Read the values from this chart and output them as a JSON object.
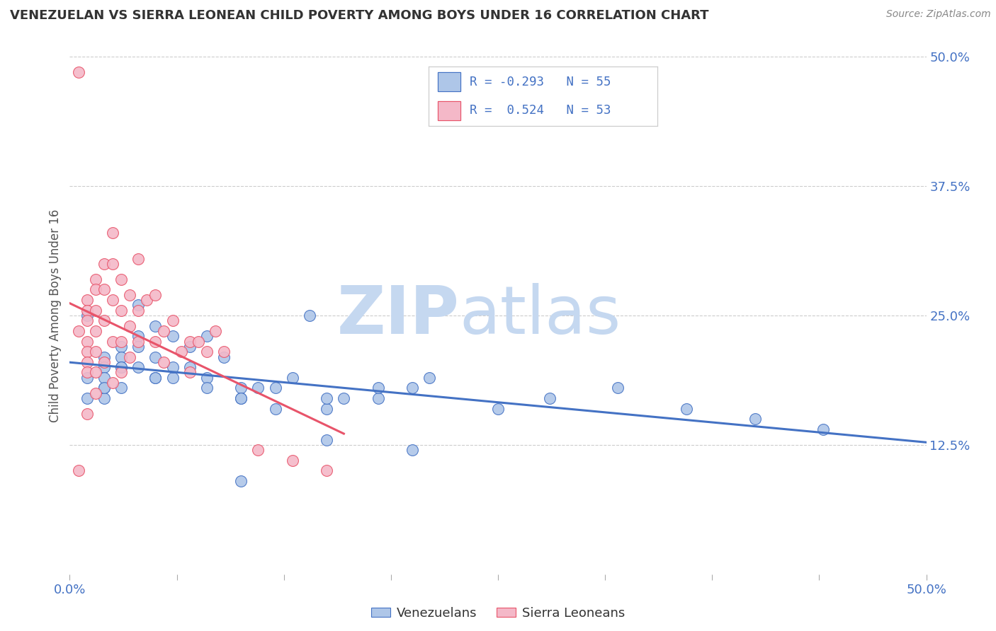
{
  "title": "VENEZUELAN VS SIERRA LEONEAN CHILD POVERTY AMONG BOYS UNDER 16 CORRELATION CHART",
  "source": "Source: ZipAtlas.com",
  "ylabel": "Child Poverty Among Boys Under 16",
  "xlim": [
    0.0,
    0.5
  ],
  "ylim": [
    0.0,
    0.5
  ],
  "xticks": [
    0.0,
    0.0625,
    0.125,
    0.1875,
    0.25,
    0.3125,
    0.375,
    0.4375,
    0.5
  ],
  "xticklabels_show": {
    "0.0": "0.0%",
    "0.50": "50.0%"
  },
  "yticks_right": [
    0.125,
    0.25,
    0.375,
    0.5
  ],
  "yticklabels_right": [
    "12.5%",
    "25.0%",
    "37.5%",
    "50.0%"
  ],
  "venezuelan_color": "#aec6e8",
  "sierraleone_color": "#f4b8c8",
  "venezuelan_line_color": "#4472c4",
  "sierraleone_line_color": "#e8546a",
  "watermark_zip_color": "#c5d8f0",
  "watermark_atlas_color": "#c5d8f0",
  "background_color": "#ffffff",
  "legend_box_color": "#ffffff",
  "legend_border_color": "#cccccc",
  "venezuelan_x": [
    0.02,
    0.03,
    0.01,
    0.04,
    0.05,
    0.02,
    0.03,
    0.01,
    0.02,
    0.04,
    0.03,
    0.05,
    0.02,
    0.01,
    0.04,
    0.06,
    0.03,
    0.02,
    0.05,
    0.07,
    0.04,
    0.06,
    0.02,
    0.03,
    0.08,
    0.1,
    0.05,
    0.07,
    0.09,
    0.11,
    0.13,
    0.16,
    0.06,
    0.08,
    0.1,
    0.12,
    0.15,
    0.18,
    0.2,
    0.14,
    0.08,
    0.1,
    0.12,
    0.15,
    0.18,
    0.21,
    0.25,
    0.28,
    0.32,
    0.36,
    0.4,
    0.44,
    0.1,
    0.15,
    0.2
  ],
  "venezuelan_y": [
    0.21,
    0.22,
    0.25,
    0.23,
    0.24,
    0.2,
    0.21,
    0.19,
    0.18,
    0.22,
    0.2,
    0.21,
    0.19,
    0.17,
    0.2,
    0.23,
    0.18,
    0.17,
    0.19,
    0.22,
    0.26,
    0.19,
    0.18,
    0.2,
    0.23,
    0.18,
    0.19,
    0.2,
    0.21,
    0.18,
    0.19,
    0.17,
    0.2,
    0.19,
    0.17,
    0.18,
    0.16,
    0.17,
    0.18,
    0.25,
    0.18,
    0.17,
    0.16,
    0.17,
    0.18,
    0.19,
    0.16,
    0.17,
    0.18,
    0.16,
    0.15,
    0.14,
    0.09,
    0.13,
    0.12
  ],
  "sierraleone_x": [
    0.005,
    0.005,
    0.005,
    0.01,
    0.01,
    0.01,
    0.01,
    0.01,
    0.01,
    0.01,
    0.01,
    0.015,
    0.015,
    0.015,
    0.015,
    0.015,
    0.015,
    0.015,
    0.02,
    0.02,
    0.02,
    0.02,
    0.025,
    0.025,
    0.025,
    0.025,
    0.025,
    0.03,
    0.03,
    0.03,
    0.03,
    0.035,
    0.035,
    0.035,
    0.04,
    0.04,
    0.04,
    0.045,
    0.05,
    0.05,
    0.055,
    0.055,
    0.06,
    0.065,
    0.07,
    0.07,
    0.075,
    0.08,
    0.085,
    0.09,
    0.11,
    0.13,
    0.15
  ],
  "sierraleone_y": [
    0.485,
    0.235,
    0.1,
    0.265,
    0.255,
    0.245,
    0.225,
    0.215,
    0.205,
    0.195,
    0.155,
    0.285,
    0.275,
    0.255,
    0.235,
    0.215,
    0.195,
    0.175,
    0.3,
    0.275,
    0.245,
    0.205,
    0.33,
    0.3,
    0.265,
    0.225,
    0.185,
    0.285,
    0.255,
    0.225,
    0.195,
    0.27,
    0.24,
    0.21,
    0.305,
    0.255,
    0.225,
    0.265,
    0.27,
    0.225,
    0.235,
    0.205,
    0.245,
    0.215,
    0.225,
    0.195,
    0.225,
    0.215,
    0.235,
    0.215,
    0.12,
    0.11,
    0.1
  ]
}
